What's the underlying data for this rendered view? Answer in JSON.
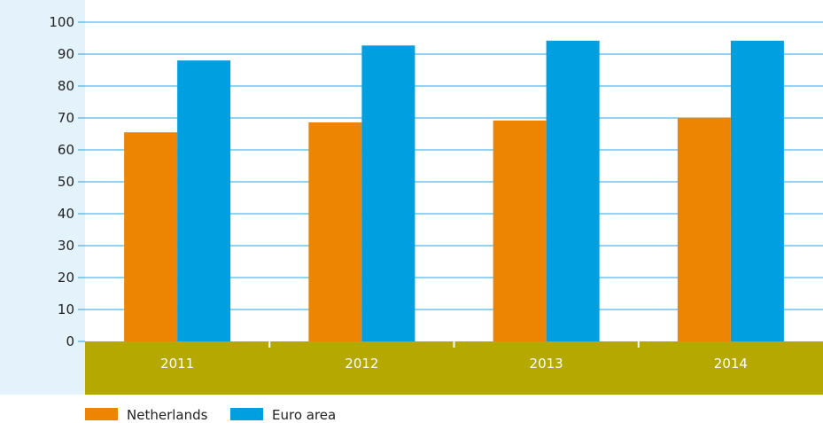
{
  "chart_data": {
    "type": "bar",
    "title": "",
    "xlabel": "",
    "ylabel": "",
    "categories": [
      "2011",
      "2012",
      "2013",
      "2014"
    ],
    "series": [
      {
        "name": "Netherlands",
        "values": [
          65.5,
          68.6,
          69.2,
          70.1
        ],
        "color": "#ee8502"
      },
      {
        "name": "Euro area",
        "values": [
          88.0,
          92.7,
          94.2,
          94.2
        ],
        "color": "#009fe0"
      }
    ],
    "ylim": [
      0,
      100
    ],
    "yticks": [
      "0",
      "10",
      "20",
      "30",
      "40",
      "50",
      "60",
      "70",
      "80",
      "90",
      "100"
    ],
    "grid": true,
    "legend_position": "bottom-left",
    "colors": {
      "grid": "#2aa7e2",
      "axis_panel": "#e4f2fb",
      "category_band": "#b5a800",
      "category_text": "#ffffff",
      "tick_text": "#222222",
      "legend_text": "#222222"
    }
  }
}
